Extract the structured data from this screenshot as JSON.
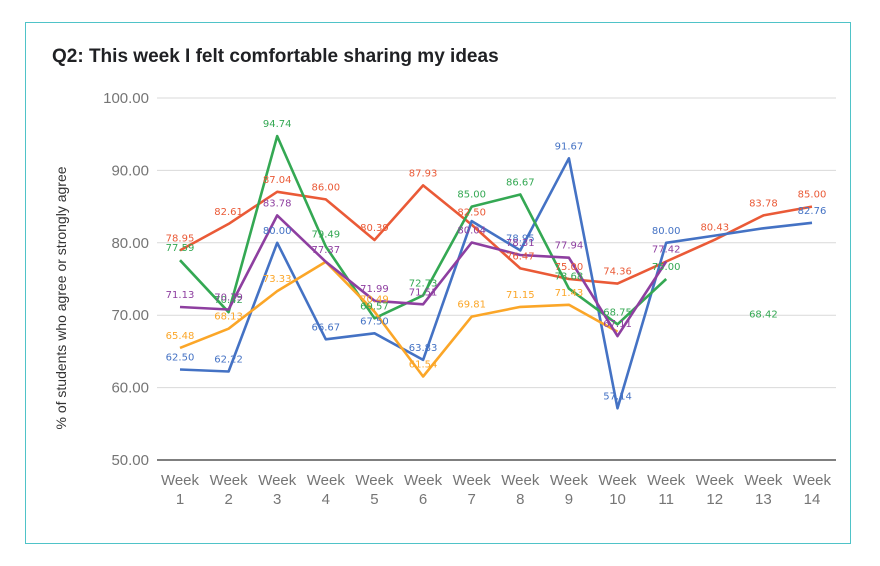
{
  "chart_data": {
    "type": "line",
    "title": "Q2: This week I felt comfortable sharing my ideas",
    "ylabel": "% of students who agree or strongly agree",
    "xlabel": "",
    "ylim": [
      50,
      100
    ],
    "yticks": [
      "50.00",
      "60.00",
      "70.00",
      "80.00",
      "90.00",
      "100.00"
    ],
    "categories": [
      [
        "Week",
        "1"
      ],
      [
        "Week",
        "2"
      ],
      [
        "Week",
        "3"
      ],
      [
        "Week",
        "4"
      ],
      [
        "Week",
        "5"
      ],
      [
        "Week",
        "6"
      ],
      [
        "Week",
        "7"
      ],
      [
        "Week",
        "8"
      ],
      [
        "Week",
        "9"
      ],
      [
        "Week",
        "10"
      ],
      [
        "Week",
        "11"
      ],
      [
        "Week",
        "12"
      ],
      [
        "Week",
        "13"
      ],
      [
        "Week",
        "14"
      ]
    ],
    "grid": true,
    "legend": "none",
    "series": [
      {
        "color": "#ea5a37",
        "values": [
          78.95,
          82.61,
          87.04,
          86.0,
          80.39,
          87.93,
          82.5,
          76.47,
          75.0,
          74.36,
          77.42,
          80.43,
          83.78,
          85.0
        ],
        "labels": [
          "78.95",
          "82.61",
          "87.04",
          "86.00",
          "80.39",
          "87.93",
          "82.50",
          "76.47",
          "75.00",
          "74.36",
          "",
          "80.43",
          "83.78",
          "85.00"
        ]
      },
      {
        "color": "#4472c4",
        "values": [
          62.5,
          62.22,
          80.0,
          66.67,
          67.5,
          63.83,
          83.0,
          78.95,
          91.67,
          57.14,
          80.0,
          81.0,
          82.0,
          82.76
        ],
        "labels": [
          "62.50",
          "62.22",
          "80.00",
          "66.67",
          "67.50",
          "63.83",
          "",
          "78.95",
          "91.67",
          "57.14",
          "80.00",
          "",
          "",
          "82.76"
        ]
      },
      {
        "color": "#34a853",
        "values": [
          77.59,
          70.42,
          94.74,
          79.49,
          69.57,
          72.73,
          85.0,
          86.67,
          73.68,
          68.75,
          75.0,
          null,
          68.42,
          null
        ],
        "labels": [
          "77.59",
          "70.42",
          "94.74",
          "79.49",
          "69.57",
          "72.73",
          "85.00",
          "86.67",
          "73.68",
          "68.75",
          "75.00",
          "",
          "68.42",
          ""
        ]
      },
      {
        "color": "#fba628",
        "values": [
          65.48,
          68.13,
          73.33,
          77.37,
          70.49,
          61.54,
          69.81,
          71.15,
          71.43,
          67.71,
          null,
          null,
          null,
          null
        ],
        "labels": [
          "65.48",
          "68.13",
          "73.33",
          "",
          "70.49",
          "61.54",
          "69.81",
          "71.15",
          "71.43",
          "",
          "",
          "",
          "",
          ""
        ]
      },
      {
        "color": "#8e3fa0",
        "values": [
          71.13,
          70.79,
          83.78,
          77.37,
          71.99,
          71.51,
          80.04,
          78.31,
          77.94,
          67.11,
          77.42,
          null,
          null,
          null
        ],
        "labels": [
          "71.13",
          "70.79",
          "83.78",
          "77.37",
          "71.99",
          "71.51",
          "80.04",
          "78.31",
          "77.94",
          "67.11",
          "77.42",
          "",
          "",
          ""
        ]
      }
    ]
  }
}
